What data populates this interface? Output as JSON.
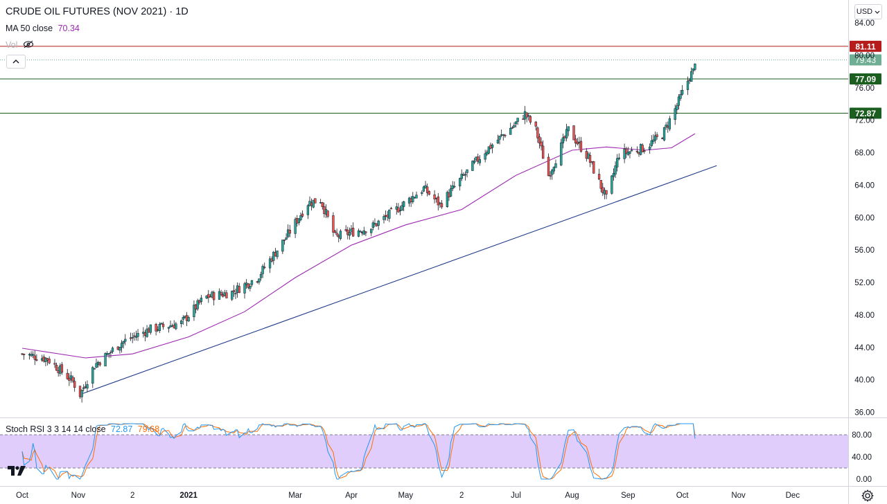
{
  "header": {
    "title": "CRUDE OIL FUTURES (NOV 2021) · 1D",
    "ma_label": "MA 50 close",
    "ma_value": "70.34",
    "vol_label": "Vol"
  },
  "currency": "USD",
  "stoch": {
    "label": "Stoch RSI 3 3 14 14 close",
    "k": "72.87",
    "d": "79.68"
  },
  "price_axis": {
    "ticks": [
      "84.00",
      "80.00",
      "76.00",
      "72.00",
      "68.00",
      "64.00",
      "60.00",
      "56.00",
      "52.00",
      "48.00",
      "44.00",
      "40.00",
      "36.00"
    ],
    "tick_values": [
      84,
      80,
      76,
      72,
      68,
      64,
      60,
      56,
      52,
      48,
      44,
      40,
      36
    ]
  },
  "stoch_axis": {
    "ticks": [
      "80.00",
      "40.00",
      "0.00"
    ],
    "tick_values": [
      80,
      40,
      0
    ]
  },
  "time_axis": {
    "labels": [
      "Oct",
      "Nov",
      "2",
      "2021",
      "Mar",
      "Apr",
      "May",
      "2",
      "Jul",
      "Aug",
      "Sep",
      "Oct",
      "Nov",
      "Dec"
    ],
    "dates": [
      "2020-10-01",
      "2020-11-01",
      "2020-12-01",
      "2021-01-01",
      "2021-03-01",
      "2021-04-01",
      "2021-05-01",
      "2021-06-01",
      "2021-07-01",
      "2021-08-01",
      "2021-09-01",
      "2021-10-01",
      "2021-11-01",
      "2021-12-01"
    ],
    "bold": [
      false,
      false,
      false,
      true,
      false,
      false,
      false,
      false,
      false,
      false,
      false,
      false,
      false,
      false
    ]
  },
  "colors": {
    "up": "#26a69a",
    "down": "#ef5350",
    "ma": "#9c27b0",
    "trend": "#1e3a8a",
    "red_level": "#b71c1c",
    "green_level": "#1b5e20",
    "last_price": "#6fae94",
    "stoch_k": "#2196f3",
    "stoch_d": "#ff6d00",
    "stoch_band": "#e1cdfc"
  },
  "chart_data": {
    "type": "candlestick",
    "title": "CRUDE OIL FUTURES (NOV 2021) · 1D",
    "ylim": [
      36,
      86
    ],
    "price_anchors": [
      [
        "2020-10-01",
        43.2
      ],
      [
        "2020-10-15",
        42.6
      ],
      [
        "2020-10-29",
        39.8
      ],
      [
        "2020-11-02",
        38.2
      ],
      [
        "2020-11-10",
        41.8
      ],
      [
        "2020-11-25",
        44.6
      ],
      [
        "2020-12-10",
        46.2
      ],
      [
        "2020-12-28",
        47.0
      ],
      [
        "2021-01-10",
        50.2
      ],
      [
        "2021-01-25",
        50.8
      ],
      [
        "2021-02-08",
        52.6
      ],
      [
        "2021-02-24",
        57.6
      ],
      [
        "2021-03-08",
        61.8
      ],
      [
        "2021-03-15",
        62.2
      ],
      [
        "2021-03-23",
        57.6
      ],
      [
        "2021-04-01",
        58.2
      ],
      [
        "2021-04-12",
        58.8
      ],
      [
        "2021-04-26",
        61.0
      ],
      [
        "2021-05-11",
        63.6
      ],
      [
        "2021-05-20",
        61.6
      ],
      [
        "2021-05-31",
        64.6
      ],
      [
        "2021-06-14",
        68.2
      ],
      [
        "2021-06-30",
        71.4
      ],
      [
        "2021-07-06",
        72.8
      ],
      [
        "2021-07-12",
        70.8
      ],
      [
        "2021-07-19",
        65.2
      ],
      [
        "2021-07-30",
        70.8
      ],
      [
        "2021-08-10",
        67.4
      ],
      [
        "2021-08-20",
        62.3
      ],
      [
        "2021-08-27",
        67.8
      ],
      [
        "2021-09-10",
        68.6
      ],
      [
        "2021-09-20",
        70.2
      ],
      [
        "2021-09-28",
        73.8
      ],
      [
        "2021-10-05",
        77.4
      ],
      [
        "2021-10-07",
        78.0
      ],
      [
        "2021-10-08",
        79.4
      ]
    ],
    "ma50": [
      [
        "2020-10-01",
        43.9
      ],
      [
        "2020-11-05",
        42.7
      ],
      [
        "2020-12-01",
        43.2
      ],
      [
        "2021-01-01",
        45.3
      ],
      [
        "2021-02-01",
        48.4
      ],
      [
        "2021-03-01",
        52.6
      ],
      [
        "2021-04-01",
        56.6
      ],
      [
        "2021-05-01",
        59.1
      ],
      [
        "2021-06-01",
        61.0
      ],
      [
        "2021-07-01",
        65.2
      ],
      [
        "2021-08-01",
        68.3
      ],
      [
        "2021-08-20",
        68.7
      ],
      [
        "2021-09-10",
        68.3
      ],
      [
        "2021-09-25",
        68.6
      ],
      [
        "2021-10-08",
        70.34
      ]
    ],
    "trendline": [
      [
        "2020-11-02",
        38.2
      ],
      [
        "2021-10-20",
        66.4
      ]
    ],
    "levels": [
      {
        "value": 81.11,
        "label": "81.11",
        "kind": "resistance"
      },
      {
        "value": 77.09,
        "label": "77.09",
        "kind": "support"
      },
      {
        "value": 72.87,
        "label": "72.87",
        "kind": "support"
      }
    ],
    "last_price": {
      "value": 79.43,
      "label": "79.43"
    },
    "stoch_rsi": {
      "k_last": 72.87,
      "d_last": 79.68,
      "upper_band": 80,
      "lower_band": 20
    }
  }
}
